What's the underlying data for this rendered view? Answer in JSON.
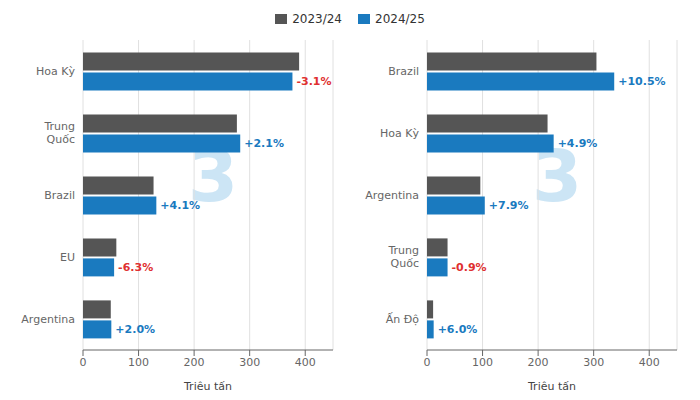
{
  "chart_data": [
    {
      "type": "bar",
      "orientation": "horizontal",
      "categories": [
        "Hoa Kỳ",
        "Trung\nQuốc",
        "Brazil",
        "EU",
        "Argentina"
      ],
      "series": [
        {
          "name": "2023/24",
          "color": "#555555",
          "values": [
            389,
            277,
            127,
            60,
            50
          ]
        },
        {
          "name": "2024/25",
          "color": "#1a7abf",
          "values": [
            377,
            283,
            132,
            56,
            51
          ]
        }
      ],
      "annotations": [
        {
          "series": "2024/25",
          "category": "Hoa Kỳ",
          "text": "-3.1%",
          "color": "#e03030"
        },
        {
          "series": "2024/25",
          "category": "Trung\nQuốc",
          "text": "+2.1%",
          "color": "#1a7abf"
        },
        {
          "series": "2024/25",
          "category": "Brazil",
          "text": "+4.1%",
          "color": "#1a7abf"
        },
        {
          "series": "2024/25",
          "category": "EU",
          "text": "-6.3%",
          "color": "#e03030"
        },
        {
          "series": "2024/25",
          "category": "Argentina",
          "text": "+2.0%",
          "color": "#1a7abf"
        }
      ],
      "watermark": {
        "text": "3",
        "color": "#cce5f5"
      },
      "xlabel": "Triệu tấn",
      "xlim": [
        0,
        450
      ],
      "xticks": [
        0,
        100,
        200,
        300,
        400
      ],
      "grid": true,
      "legend": "top"
    },
    {
      "type": "bar",
      "orientation": "horizontal",
      "categories": [
        "Brazil",
        "Hoa Kỳ",
        "Argentina",
        "Trung\nQuốc",
        "Ấn Độ"
      ],
      "series": [
        {
          "name": "2023/24",
          "color": "#555555",
          "values": [
            305,
            217,
            96,
            37,
            11
          ]
        },
        {
          "name": "2024/25",
          "color": "#1a7abf",
          "values": [
            337,
            228,
            104,
            37,
            12
          ]
        }
      ],
      "annotations": [
        {
          "series": "2024/25",
          "category": "Brazil",
          "text": "+10.5%",
          "color": "#1a7abf"
        },
        {
          "series": "2024/25",
          "category": "Hoa Kỳ",
          "text": "+4.9%",
          "color": "#1a7abf"
        },
        {
          "series": "2024/25",
          "category": "Argentina",
          "text": "+7.9%",
          "color": "#1a7abf"
        },
        {
          "series": "2024/25",
          "category": "Trung\nQuốc",
          "text": "-0.9%",
          "color": "#e03030"
        },
        {
          "series": "2024/25",
          "category": "Ấn Độ",
          "text": "+6.0%",
          "color": "#1a7abf"
        }
      ],
      "watermark": {
        "text": "3",
        "color": "#cce5f5"
      },
      "xlabel": "Triệu tấn",
      "xlim": [
        0,
        450
      ],
      "xticks": [
        0,
        100,
        200,
        300,
        400
      ],
      "grid": true
    }
  ]
}
